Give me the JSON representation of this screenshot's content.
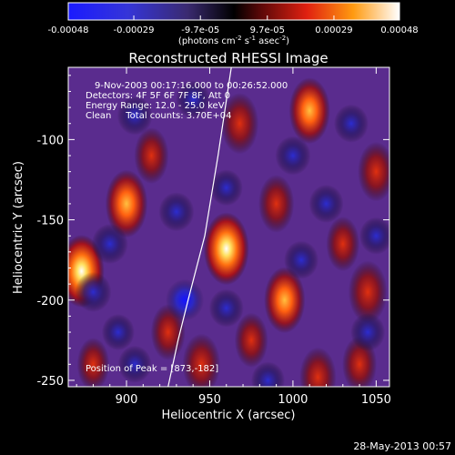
{
  "colorbar": {
    "ticks": [
      "-0.00048",
      "-0.00029",
      "-9.7e-05",
      "9.7e-05",
      "0.00029",
      "0.00048"
    ],
    "tick_values": [
      -0.00048,
      -0.00029,
      -9.7e-05,
      9.7e-05,
      0.00029,
      0.00048
    ],
    "range": [
      -0.00048,
      0.00048
    ],
    "units_main": "(photons cm",
    "units_sup1": "-2",
    "units_mid": " s",
    "units_sup2": "-1",
    "units_end": " asec",
    "units_sup3": "-2",
    "units_close": ")"
  },
  "chart_data": {
    "type": "heatmap",
    "title": "Reconstructed RHESSI Image",
    "xlabel": "Heliocentric X (arcsec)",
    "ylabel": "Heliocentric Y (arcsec)",
    "xlim": [
      865,
      1058
    ],
    "ylim": [
      -254,
      -55
    ],
    "xticks": [
      900,
      950,
      1000,
      1050
    ],
    "yticks": [
      -100,
      -150,
      -200,
      -250
    ],
    "colormap": "rhessi-hot",
    "blobs": [
      {
        "x": 873,
        "y": -182,
        "v": 1.0
      },
      {
        "x": 960,
        "y": -168,
        "v": 1.0
      },
      {
        "x": 900,
        "y": -140,
        "v": 0.85
      },
      {
        "x": 1010,
        "y": -82,
        "v": 0.8
      },
      {
        "x": 968,
        "y": -90,
        "v": 0.65
      },
      {
        "x": 995,
        "y": -200,
        "v": 0.8
      },
      {
        "x": 1045,
        "y": -195,
        "v": 0.7
      },
      {
        "x": 1050,
        "y": -120,
        "v": 0.6
      },
      {
        "x": 945,
        "y": -240,
        "v": 0.65
      },
      {
        "x": 1015,
        "y": -248,
        "v": 0.6
      },
      {
        "x": 915,
        "y": -110,
        "v": 0.5
      },
      {
        "x": 990,
        "y": -140,
        "v": 0.55
      },
      {
        "x": 925,
        "y": -220,
        "v": 0.5
      },
      {
        "x": 1030,
        "y": -165,
        "v": 0.45
      },
      {
        "x": 1040,
        "y": -240,
        "v": 0.5
      },
      {
        "x": 880,
        "y": -240,
        "v": 0.4
      },
      {
        "x": 975,
        "y": -225,
        "v": 0.45
      },
      {
        "x": 1005,
        "y": -175,
        "v": -0.5
      },
      {
        "x": 880,
        "y": -195,
        "v": -0.6
      },
      {
        "x": 935,
        "y": -200,
        "v": -0.7
      },
      {
        "x": 890,
        "y": -165,
        "v": -0.6
      },
      {
        "x": 930,
        "y": -145,
        "v": -0.55
      },
      {
        "x": 905,
        "y": -85,
        "v": -0.55
      },
      {
        "x": 940,
        "y": -75,
        "v": -0.5
      },
      {
        "x": 1000,
        "y": -110,
        "v": -0.55
      },
      {
        "x": 1035,
        "y": -90,
        "v": -0.5
      },
      {
        "x": 1020,
        "y": -140,
        "v": -0.5
      },
      {
        "x": 1050,
        "y": -160,
        "v": -0.45
      },
      {
        "x": 1045,
        "y": -220,
        "v": -0.5
      },
      {
        "x": 960,
        "y": -205,
        "v": -0.5
      },
      {
        "x": 985,
        "y": -250,
        "v": -0.45
      },
      {
        "x": 905,
        "y": -240,
        "v": -0.45
      },
      {
        "x": 960,
        "y": -130,
        "v": -0.4
      },
      {
        "x": 895,
        "y": -220,
        "v": -0.4
      }
    ],
    "limb": [
      [
        963,
        -55
      ],
      [
        955,
        -110
      ],
      [
        947,
        -160
      ],
      [
        937,
        -200
      ],
      [
        931,
        -225
      ],
      [
        925,
        -254
      ]
    ],
    "annotations": {
      "line1": "9-Nov-2003 00:17:16.000 to 00:26:52.000",
      "line2": "Detectors: 4F 5F 6F 7F 8F, Att 0",
      "line3": "Energy Range: 12.0 - 25.0 keV",
      "line4": "Clean     Total counts: 3.70E+04",
      "peak": "Position of Peak = [873,-182]"
    }
  },
  "footer": {
    "timestamp": "28-May-2013 00:57"
  }
}
